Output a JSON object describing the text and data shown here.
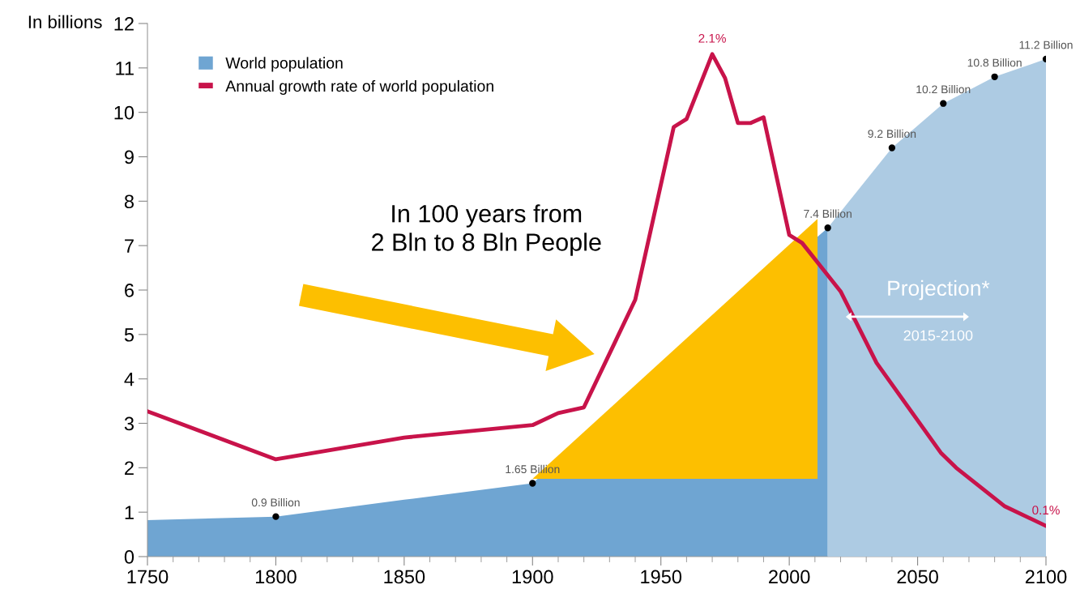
{
  "chart_data": {
    "type": "area",
    "ylabel": "In billions",
    "xlim": [
      1750,
      2100
    ],
    "xticks": [
      1750,
      1800,
      1850,
      1900,
      1950,
      2000,
      2050,
      2100
    ],
    "ylim": [
      0,
      12
    ],
    "yticks": [
      0,
      1,
      2,
      3,
      4,
      5,
      6,
      7,
      8,
      9,
      10,
      11,
      12
    ],
    "grid": false,
    "legend": "top left",
    "series": [
      {
        "name": "World population",
        "color": "#6fa5d2",
        "x": [
          1750,
          1800,
          1850,
          1900,
          2015
        ],
        "values": [
          0.82,
          0.9,
          1.28,
          1.65,
          7.4
        ],
        "value_labels": [
          null,
          "0.9 Billion",
          null,
          "1.65 Billion",
          "7.4 Billion"
        ]
      },
      {
        "color": "#adcbe3",
        "x": [
          2015,
          2040,
          2060,
          2080,
          2100
        ],
        "values": [
          7.4,
          9.2,
          10.2,
          10.8,
          11.2
        ],
        "value_labels": [
          null,
          "9.2 Billion",
          "10.2 Billion",
          "10.8 Billion",
          "11.2 Billion"
        ]
      },
      {
        "name": "Annual growth rate of world population",
        "type": "line",
        "color": "#c8134a",
        "x": [
          1750,
          1800,
          1850,
          1900,
          1910,
          1920,
          1940,
          1955,
          1960,
          1970,
          1975,
          1980,
          1985,
          1990,
          2000,
          2005,
          2020,
          2034,
          2059,
          2065,
          2084,
          2100
        ],
        "values": [
          3.27,
          2.19,
          2.68,
          2.96,
          3.23,
          3.36,
          5.78,
          9.67,
          9.85,
          11.31,
          10.77,
          9.76,
          9.76,
          9.89,
          7.24,
          7.06,
          5.97,
          4.36,
          2.34,
          2.0,
          1.13,
          0.69
        ]
      }
    ],
    "annotations": [
      {
        "text": "2.1%",
        "x": 1970,
        "y": 11.31
      },
      {
        "text": "0.1%",
        "x": 2100,
        "y": 0.69
      },
      "In 100 years from\n2 Bln to 8 Bln People",
      "Projection*",
      "2015-2100"
    ]
  }
}
